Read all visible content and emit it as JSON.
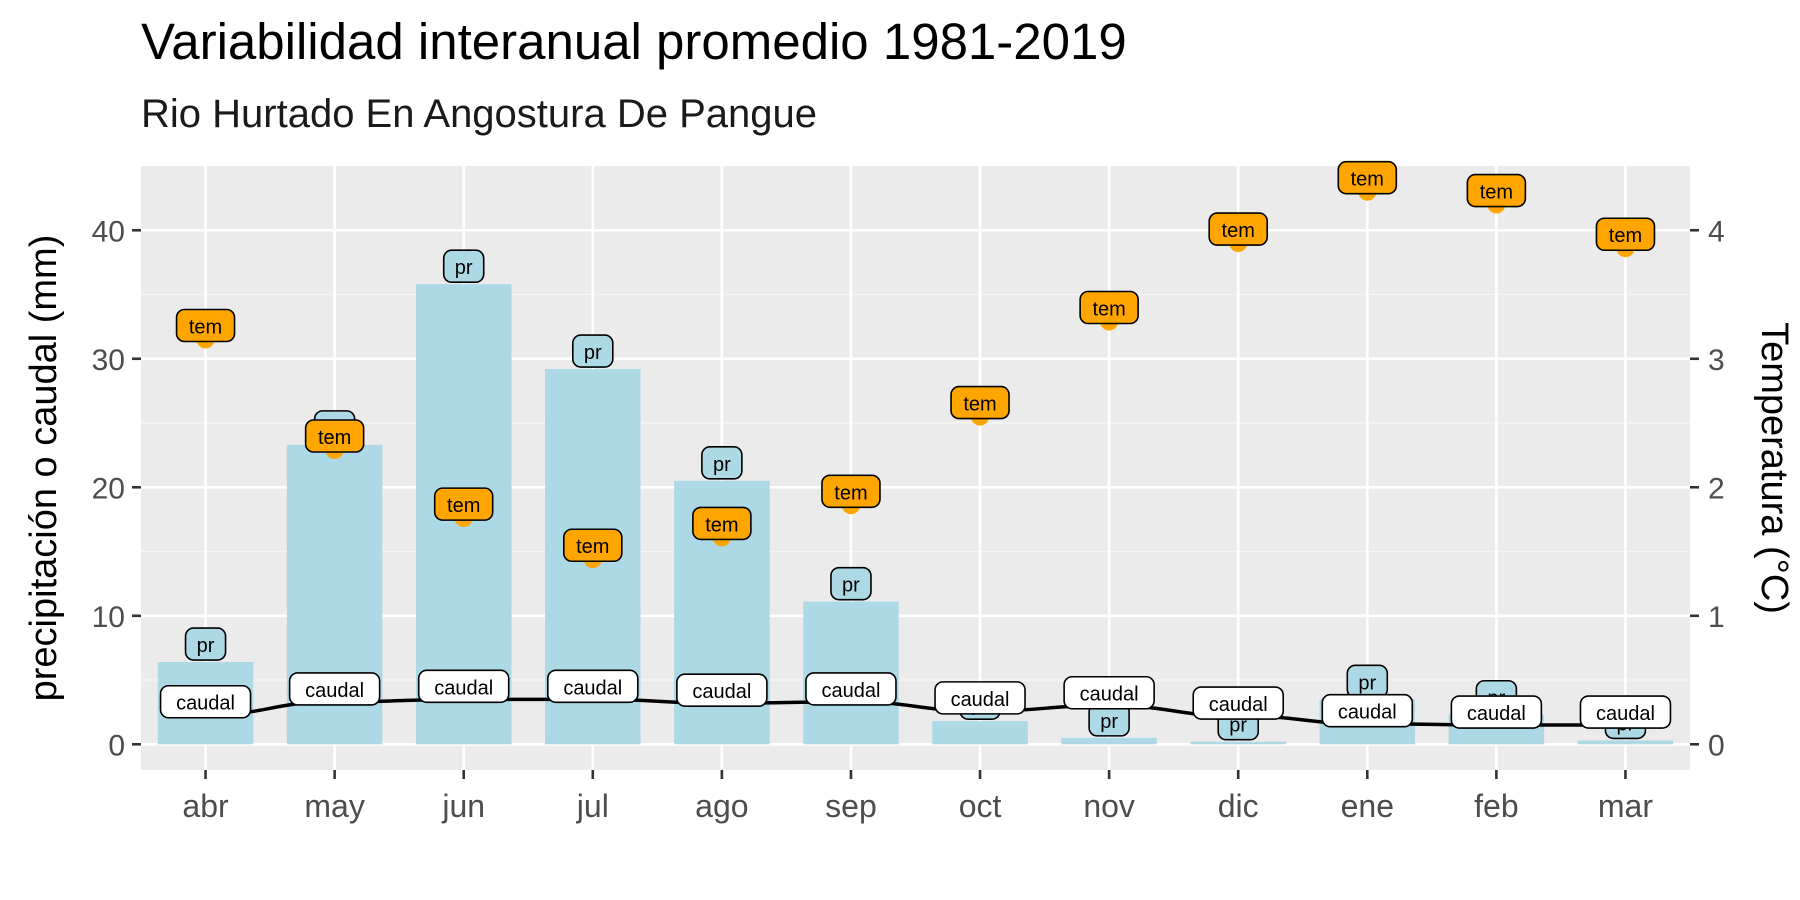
{
  "chart_data": {
    "type": "bar",
    "title": "Variabilidad interanual promedio 1981-2019",
    "subtitle": "Rio Hurtado En Angostura De Pangue",
    "ylabel_left": "precipitación o caudal (mm)",
    "ylabel_right": "Temperatura (°C)",
    "categories": [
      "abr",
      "may",
      "jun",
      "jul",
      "ago",
      "sep",
      "oct",
      "nov",
      "dic",
      "ene",
      "feb",
      "mar"
    ],
    "ylim_left": [
      -2,
      45
    ],
    "yticks_left": [
      0,
      10,
      20,
      30,
      40
    ],
    "ylim_right": [
      -0.2,
      4.5
    ],
    "yticks_right": [
      0,
      1,
      2,
      3,
      4
    ],
    "grid": true,
    "series": [
      {
        "name": "pr",
        "kind": "bar",
        "axis": "left",
        "color": "#add8e6",
        "label_text": "pr",
        "values": [
          6.4,
          23.3,
          35.8,
          29.2,
          20.5,
          11.1,
          1.8,
          0.5,
          0.2,
          3.5,
          2.3,
          0.3
        ]
      },
      {
        "name": "caudal",
        "kind": "line",
        "axis": "left",
        "color": "#000000",
        "label_fill": "#ffffff",
        "label_text": "caudal",
        "values": [
          2.3,
          3.3,
          3.5,
          3.5,
          3.2,
          3.3,
          2.6,
          3.0,
          2.2,
          1.6,
          1.5,
          1.5
        ]
      },
      {
        "name": "tem",
        "kind": "point",
        "axis": "right",
        "color": "#ffa500",
        "label_text": "tem",
        "values": [
          3.15,
          2.29,
          1.76,
          1.44,
          1.61,
          1.86,
          2.55,
          3.29,
          3.9,
          4.3,
          4.2,
          3.86
        ]
      }
    ]
  }
}
